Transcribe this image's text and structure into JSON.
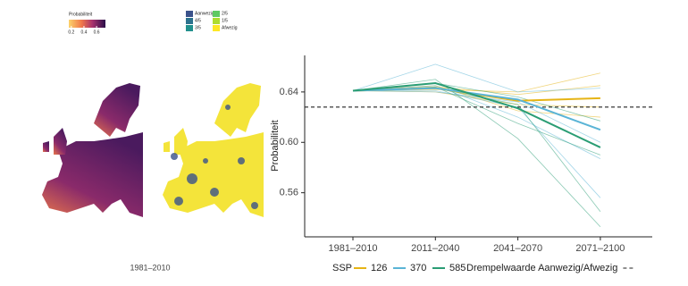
{
  "maps": {
    "caption": "1981–2010",
    "colorbar": {
      "title": "Probabiliteit",
      "lim": [
        0.16,
        0.74
      ],
      "ticks": [
        0.2,
        0.4,
        0.6
      ]
    },
    "class_legend": [
      {
        "label": "Aanwezig",
        "color": "#3b528b"
      },
      {
        "label": "4/5",
        "color": "#2c728e"
      },
      {
        "label": "3/5",
        "color": "#21908d"
      },
      {
        "label": "2/5",
        "color": "#5ec962"
      },
      {
        "label": "1/5",
        "color": "#addc30"
      },
      {
        "label": "Afwezig",
        "color": "#fde725"
      }
    ]
  },
  "chart_data": {
    "type": "line",
    "y_label": "Probabiliteit",
    "legend_title": "SSP",
    "categories": [
      "1981–2010",
      "2011–2040",
      "2041–2070",
      "2071–2100"
    ],
    "ylim": [
      0.525,
      0.669
    ],
    "yticks": [
      0.56,
      {
        "value": 0.6,
        "label": "0.60"
      },
      0.64
    ],
    "threshold": {
      "label": "Drempelwaarde Aanwezig/Afwezig",
      "value": 0.628
    },
    "series": [
      {
        "name": "126",
        "color": "#e6b415",
        "values": [
          0.641,
          0.643,
          0.633,
          0.635
        ],
        "members": [
          [
            0.641,
            0.642,
            0.64,
            0.655
          ],
          [
            0.641,
            0.644,
            0.638,
            0.645
          ],
          [
            0.641,
            0.64,
            0.63,
            0.628
          ],
          [
            0.641,
            0.645,
            0.625,
            0.62
          ]
        ]
      },
      {
        "name": "370",
        "color": "#5ab4d6",
        "values": [
          0.641,
          0.643,
          0.634,
          0.61
        ],
        "members": [
          [
            0.641,
            0.662,
            0.64,
            0.643
          ],
          [
            0.641,
            0.64,
            0.632,
            0.6
          ],
          [
            0.641,
            0.645,
            0.62,
            0.587
          ],
          [
            0.641,
            0.641,
            0.628,
            0.556
          ]
        ]
      },
      {
        "name": "585",
        "color": "#2a9d74",
        "values": [
          0.641,
          0.647,
          0.627,
          0.596
        ],
        "members": [
          [
            0.641,
            0.65,
            0.603,
            0.533
          ],
          [
            0.641,
            0.644,
            0.615,
            0.59
          ],
          [
            0.641,
            0.647,
            0.636,
            0.617
          ],
          [
            0.641,
            0.643,
            0.63,
            0.545
          ]
        ]
      }
    ]
  }
}
